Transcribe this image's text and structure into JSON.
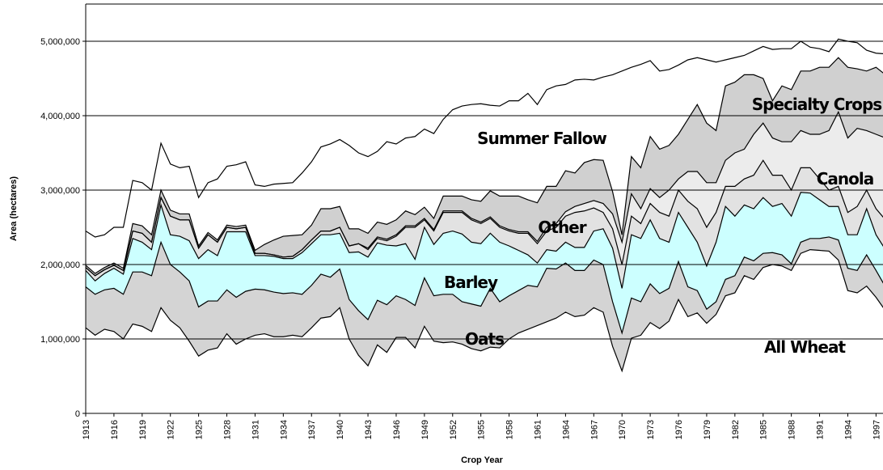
{
  "chart_data": {
    "type": "stacked_area",
    "x_label": "Crop Year",
    "y_label": "Area (hectares)",
    "x": [
      1913,
      1914,
      1915,
      1916,
      1917,
      1918,
      1919,
      1920,
      1921,
      1922,
      1923,
      1924,
      1925,
      1926,
      1927,
      1928,
      1929,
      1930,
      1931,
      1932,
      1933,
      1934,
      1935,
      1936,
      1937,
      1938,
      1939,
      1940,
      1941,
      1942,
      1943,
      1944,
      1945,
      1946,
      1947,
      1948,
      1949,
      1950,
      1951,
      1952,
      1953,
      1954,
      1955,
      1956,
      1957,
      1958,
      1959,
      1960,
      1961,
      1962,
      1963,
      1964,
      1965,
      1966,
      1967,
      1968,
      1969,
      1970,
      1971,
      1972,
      1973,
      1974,
      1975,
      1976,
      1977,
      1978,
      1979,
      1980,
      1981,
      1982,
      1983,
      1984,
      1985,
      1986,
      1987,
      1988,
      1989,
      1990,
      1991,
      1992,
      1993,
      1994,
      1995,
      1996,
      1997,
      1998
    ],
    "xlim": [
      1913,
      1998
    ],
    "xticks": [
      1913,
      1916,
      1919,
      1922,
      1925,
      1928,
      1931,
      1934,
      1937,
      1940,
      1943,
      1946,
      1949,
      1952,
      1955,
      1958,
      1961,
      1964,
      1967,
      1970,
      1973,
      1976,
      1979,
      1982,
      1985,
      1988,
      1991,
      1994,
      1997
    ],
    "ylim": [
      0,
      5500000
    ],
    "yticks": [
      0,
      {
        "value": 1000000,
        "label": "1,000,000"
      },
      {
        "value": 2000000,
        "label": "2,000,000"
      },
      {
        "value": 3000000,
        "label": "3,000,000"
      },
      {
        "value": 4000000,
        "label": "4,000,000"
      },
      {
        "value": 5000000,
        "label": "5,000,000"
      }
    ],
    "grid": true,
    "series": [
      {
        "name": "All Wheat",
        "color": "#ffffff",
        "values": [
          1150000,
          1050000,
          1130000,
          1100000,
          1000000,
          1200000,
          1170000,
          1100000,
          1420000,
          1250000,
          1150000,
          970000,
          770000,
          850000,
          880000,
          1070000,
          930000,
          1000000,
          1050000,
          1070000,
          1030000,
          1030000,
          1050000,
          1030000,
          1150000,
          1280000,
          1300000,
          1420000,
          1000000,
          780000,
          640000,
          920000,
          820000,
          1020000,
          1020000,
          880000,
          1170000,
          970000,
          950000,
          960000,
          930000,
          870000,
          840000,
          890000,
          880000,
          1000000,
          1080000,
          1130000,
          1180000,
          1230000,
          1280000,
          1360000,
          1300000,
          1320000,
          1420000,
          1360000,
          900000,
          570000,
          1010000,
          1050000,
          1220000,
          1140000,
          1240000,
          1530000,
          1300000,
          1350000,
          1210000,
          1330000,
          1580000,
          1620000,
          1850000,
          1800000,
          1960000,
          2000000,
          1980000,
          1920000,
          2150000,
          2200000,
          2190000,
          2180000,
          2060000,
          1650000,
          1620000,
          1710000,
          1560000,
          1380000
        ]
      },
      {
        "name": "Oats",
        "color": "#d4d4d4",
        "values": [
          550000,
          550000,
          530000,
          580000,
          600000,
          700000,
          730000,
          750000,
          880000,
          750000,
          750000,
          810000,
          660000,
          660000,
          630000,
          590000,
          630000,
          640000,
          620000,
          590000,
          600000,
          580000,
          570000,
          570000,
          570000,
          590000,
          530000,
          520000,
          530000,
          600000,
          620000,
          600000,
          640000,
          560000,
          510000,
          570000,
          650000,
          610000,
          650000,
          640000,
          570000,
          600000,
          600000,
          790000,
          620000,
          580000,
          570000,
          590000,
          520000,
          720000,
          660000,
          660000,
          620000,
          600000,
          640000,
          640000,
          600000,
          510000,
          540000,
          450000,
          520000,
          470000,
          440000,
          510000,
          400000,
          300000,
          190000,
          170000,
          220000,
          230000,
          250000,
          250000,
          190000,
          160000,
          150000,
          90000,
          150000,
          150000,
          160000,
          190000,
          270000,
          300000,
          300000,
          420000,
          360000,
          320000
        ]
      },
      {
        "name": "Barley",
        "color": "#ccffff",
        "values": [
          220000,
          180000,
          220000,
          270000,
          270000,
          450000,
          400000,
          350000,
          500000,
          400000,
          480000,
          540000,
          650000,
          690000,
          610000,
          780000,
          880000,
          800000,
          450000,
          460000,
          480000,
          470000,
          460000,
          560000,
          560000,
          530000,
          570000,
          480000,
          630000,
          790000,
          840000,
          770000,
          800000,
          670000,
          750000,
          620000,
          680000,
          690000,
          820000,
          850000,
          910000,
          830000,
          840000,
          740000,
          800000,
          670000,
          540000,
          410000,
          320000,
          250000,
          240000,
          280000,
          310000,
          310000,
          390000,
          480000,
          720000,
          600000,
          850000,
          850000,
          860000,
          740000,
          620000,
          660000,
          800000,
          650000,
          580000,
          800000,
          980000,
          800000,
          700000,
          700000,
          750000,
          620000,
          690000,
          640000,
          670000,
          610000,
          520000,
          410000,
          450000,
          450000,
          480000,
          620000,
          480000,
          500000
        ]
      },
      {
        "name": "Other",
        "color": "#e2e2e2",
        "values": [
          40000,
          70000,
          50000,
          40000,
          50000,
          100000,
          120000,
          100000,
          100000,
          250000,
          220000,
          280000,
          140000,
          200000,
          180000,
          60000,
          40000,
          60000,
          30000,
          30000,
          20000,
          20000,
          30000,
          40000,
          50000,
          50000,
          50000,
          80000,
          90000,
          110000,
          100000,
          60000,
          60000,
          130000,
          220000,
          430000,
          100000,
          180000,
          280000,
          250000,
          290000,
          300000,
          270000,
          200000,
          200000,
          200000,
          230000,
          290000,
          260000,
          250000,
          320000,
          350000,
          470000,
          490000,
          310000,
          220000,
          260000,
          320000,
          250000,
          200000,
          220000,
          350000,
          350000,
          300000,
          350000,
          450000,
          520000,
          400000,
          270000,
          400000,
          350000,
          450000,
          500000,
          420000,
          380000,
          350000,
          330000,
          340000,
          280000,
          220000,
          270000,
          300000,
          380000,
          250000,
          350000,
          400000
        ]
      },
      {
        "name": "Canola",
        "color": "#ececec",
        "values": [
          0,
          0,
          0,
          0,
          0,
          0,
          0,
          0,
          0,
          0,
          0,
          0,
          0,
          0,
          0,
          0,
          0,
          0,
          0,
          0,
          0,
          0,
          0,
          0,
          0,
          0,
          0,
          0,
          0,
          0,
          20000,
          20000,
          20000,
          20000,
          20000,
          20000,
          20000,
          20000,
          20000,
          20000,
          20000,
          20000,
          20000,
          20000,
          20000,
          20000,
          20000,
          20000,
          30000,
          50000,
          50000,
          60000,
          80000,
          100000,
          100000,
          120000,
          200000,
          300000,
          300000,
          200000,
          200000,
          200000,
          350000,
          150000,
          400000,
          500000,
          600000,
          400000,
          350000,
          450000,
          400000,
          550000,
          500000,
          500000,
          450000,
          650000,
          500000,
          450000,
          600000,
          800000,
          1000000,
          1000000,
          1050000,
          800000,
          1000000,
          1100000
        ]
      },
      {
        "name": "Specialty Crops",
        "color": "#d0d0d0",
        "values": [
          30000,
          30000,
          30000,
          30000,
          30000,
          100000,
          100000,
          100000,
          100000,
          80000,
          80000,
          80000,
          30000,
          30000,
          30000,
          30000,
          30000,
          30000,
          40000,
          120000,
          200000,
          280000,
          280000,
          200000,
          200000,
          300000,
          300000,
          280000,
          230000,
          200000,
          200000,
          200000,
          200000,
          200000,
          200000,
          150000,
          150000,
          150000,
          200000,
          200000,
          200000,
          250000,
          280000,
          350000,
          400000,
          450000,
          480000,
          430000,
          520000,
          550000,
          500000,
          550000,
          450000,
          550000,
          550000,
          580000,
          300000,
          100000,
          500000,
          550000,
          700000,
          650000,
          600000,
          600000,
          700000,
          900000,
          800000,
          700000,
          1000000,
          950000,
          1000000,
          800000,
          600000,
          500000,
          750000,
          700000,
          800000,
          850000,
          900000,
          850000,
          730000,
          950000,
          800000,
          800000,
          900000,
          850000
        ]
      },
      {
        "name": "Summer Fallow",
        "color": "#ffffff",
        "values": [
          460000,
          490000,
          440000,
          480000,
          550000,
          580000,
          580000,
          600000,
          630000,
          620000,
          620000,
          640000,
          650000,
          670000,
          820000,
          790000,
          830000,
          850000,
          880000,
          780000,
          750000,
          710000,
          710000,
          830000,
          850000,
          830000,
          870000,
          900000,
          1120000,
          1020000,
          1030000,
          950000,
          1110000,
          1020000,
          980000,
          1050000,
          1050000,
          1140000,
          1030000,
          1160000,
          1210000,
          1280000,
          1310000,
          1150000,
          1210000,
          1280000,
          1280000,
          1430000,
          1320000,
          1300000,
          1350000,
          1160000,
          1250000,
          1120000,
          1070000,
          1120000,
          1570000,
          2200000,
          1200000,
          1390000,
          1020000,
          1050000,
          1020000,
          930000,
          800000,
          630000,
          850000,
          920000,
          350000,
          330000,
          260000,
          320000,
          430000,
          690000,
          500000,
          550000,
          400000,
          320000,
          250000,
          210000,
          250000,
          350000,
          350000,
          280000,
          190000,
          280000
        ]
      }
    ]
  }
}
